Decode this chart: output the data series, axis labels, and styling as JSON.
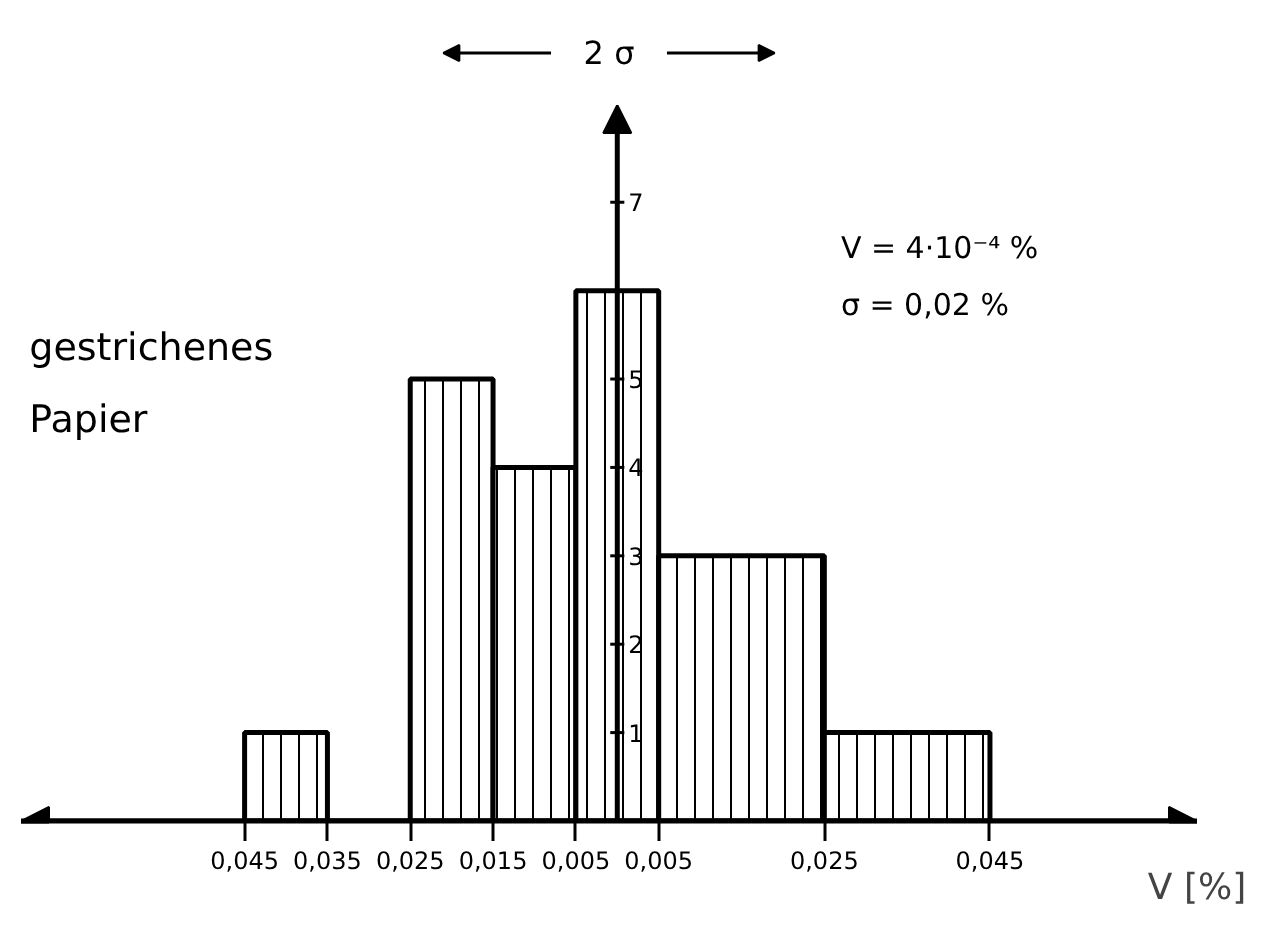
{
  "chart_data": {
    "type": "histogram",
    "bins": [
      -0.045,
      -0.035,
      -0.025,
      -0.015,
      -0.005,
      0.005,
      0.025,
      0.045
    ],
    "values": [
      1,
      0,
      5,
      4,
      6,
      3,
      1
    ],
    "color": "#000000",
    "xlabel": "V [%]",
    "xlim": [
      -0.072,
      0.07
    ],
    "ylim": [
      0,
      8.1
    ],
    "xticks": [
      {
        "value": -0.045,
        "label": "0,045"
      },
      {
        "value": -0.035,
        "label": "0,035"
      },
      {
        "value": -0.025,
        "label": "0,025"
      },
      {
        "value": -0.015,
        "label": "0,015"
      },
      {
        "value": -0.005,
        "label": "0,005"
      },
      {
        "value": 0.005,
        "label": "0,005"
      },
      {
        "value": 0.025,
        "label": "0,025"
      },
      {
        "value": 0.045,
        "label": "0,045"
      }
    ],
    "yticks": [
      1,
      2,
      3,
      4,
      5,
      7
    ],
    "grid": false,
    "annotations": [
      "2 σ",
      "V = 4·10⁻⁴ %",
      "σ = 0,02 %",
      "gestrichenes",
      "Papier"
    ]
  }
}
